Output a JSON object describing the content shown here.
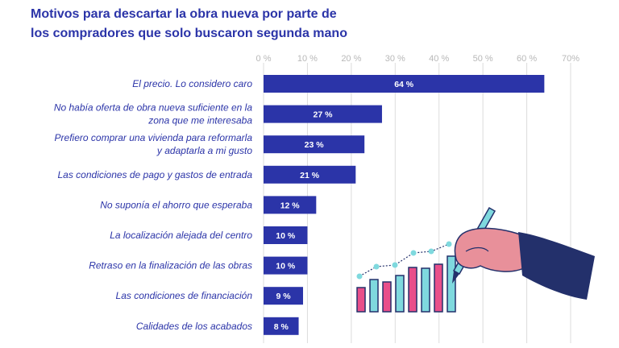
{
  "chart_data": {
    "type": "bar",
    "orientation": "horizontal",
    "title": [
      "Motivos para descartar la obra nueva por parte de",
      "los compradores que solo buscaron segunda mano"
    ],
    "xlim": [
      0,
      70
    ],
    "xticks": [
      "0 %",
      "10 %",
      "20 %",
      "30 %",
      "40 %",
      "50 %",
      "60 %",
      "70%"
    ],
    "grid": true,
    "categories": [
      [
        "El precio. Lo considero caro"
      ],
      [
        "No había oferta de obra nueva suficiente en la",
        "zona que me interesaba"
      ],
      [
        "Prefiero comprar una vivienda para reformarla",
        "y adaptarla a mi gusto"
      ],
      [
        "Las condiciones de pago y gastos de entrada"
      ],
      [
        "No suponía el ahorro que esperaba"
      ],
      [
        "La localización alejada del centro"
      ],
      [
        "Retraso en la finalización de las obras"
      ],
      [
        "Las condiciones de financiación"
      ],
      [
        "Calidades de los acabados"
      ]
    ],
    "values": [
      64,
      27,
      23,
      21,
      12,
      10,
      10,
      9,
      8
    ],
    "labels": [
      "64 %",
      "27 %",
      "23 %",
      "21 %",
      "12 %",
      "10 %",
      "10 %",
      "9 %",
      "8 %"
    ]
  },
  "colors": {
    "bar": "#2b34a8",
    "title": "#2b34a8",
    "grid": "#dcdcdc",
    "tick": "#b8b8b8",
    "pink": "#e94f8a",
    "cyan": "#7fd9de",
    "glove": "#e8909a",
    "sleeve": "#23306b"
  }
}
